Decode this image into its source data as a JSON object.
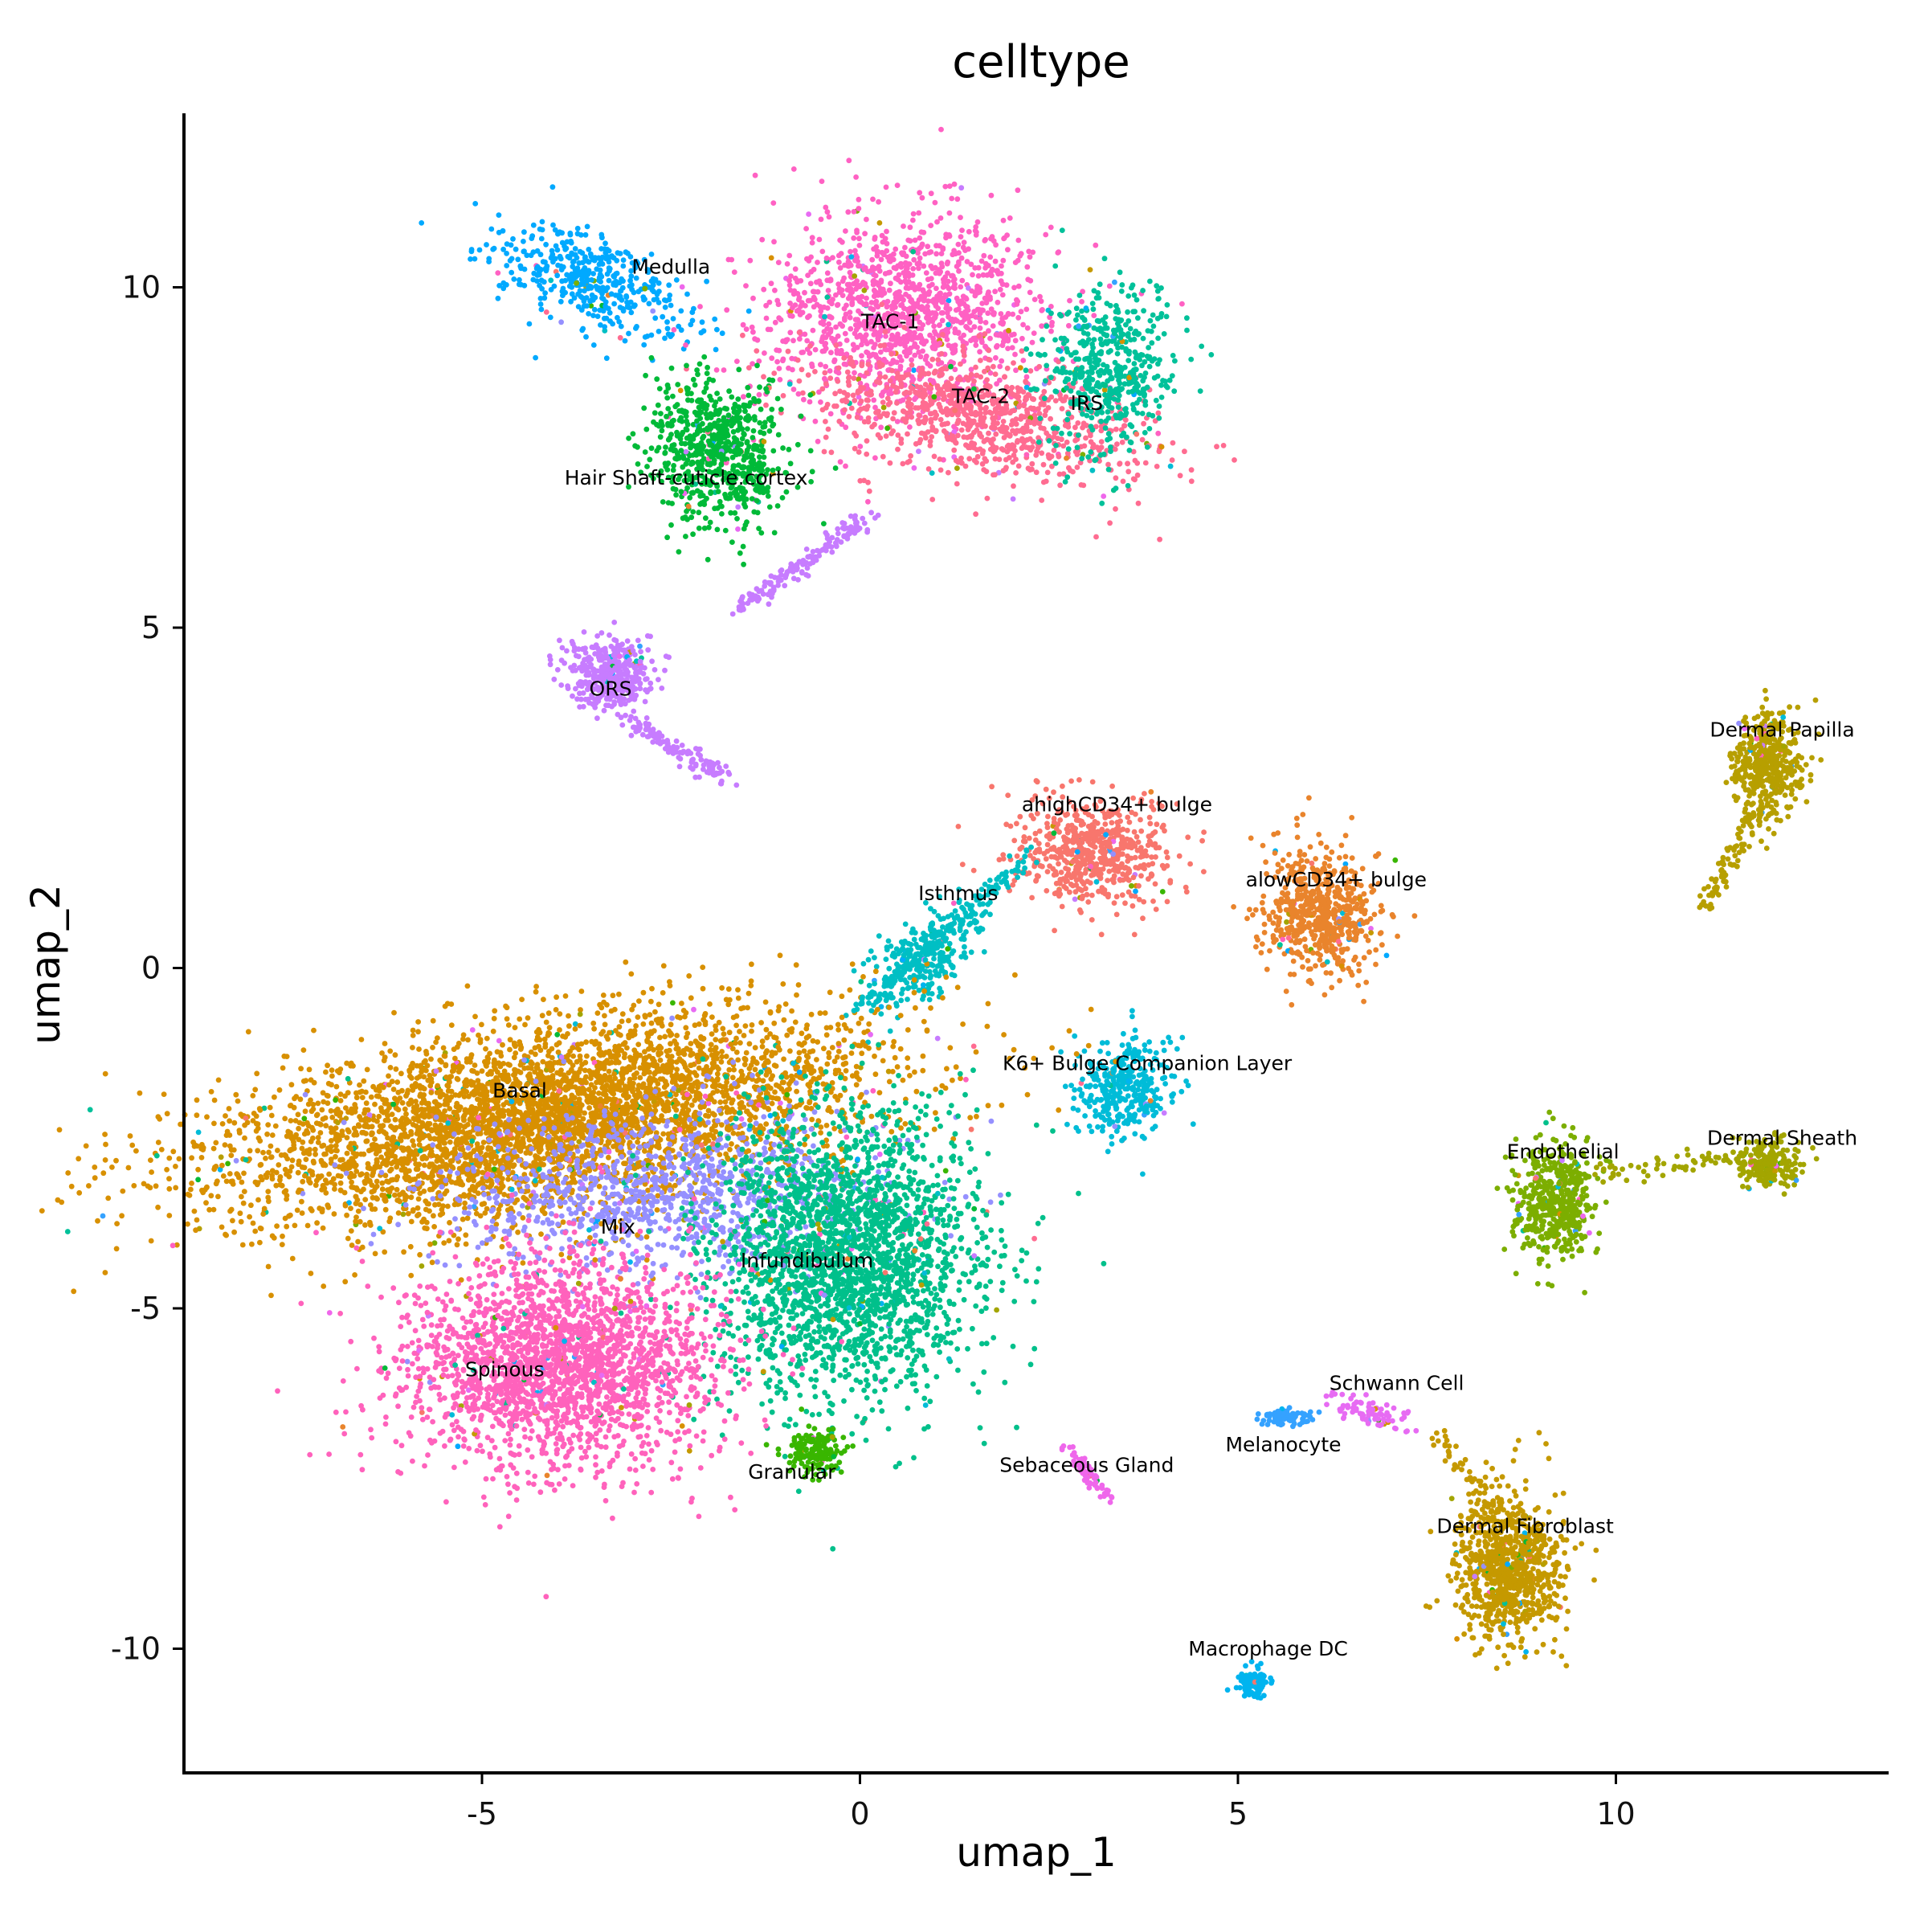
{
  "chart_data": {
    "type": "scatter",
    "title": "celltype",
    "xlabel": "umap_1",
    "ylabel": "umap_2",
    "xlim": [
      -8.9,
      13.6
    ],
    "ylim": [
      -11.9,
      12.5
    ],
    "xticks": [
      -5,
      0,
      5,
      10
    ],
    "yticks": [
      -10,
      -5,
      0,
      5,
      10
    ],
    "xtick_labels": [
      "-5",
      "0",
      "5",
      "10"
    ],
    "ytick_labels": [
      "-10",
      "-5",
      "0",
      "5",
      "10"
    ],
    "grid": false,
    "legend": "none (labels placed on clusters)",
    "clusters": [
      {
        "label": "Medulla",
        "color": "#00A9FF",
        "label_pos": [
          -2.5,
          10.2
        ],
        "centroid": [
          -3.5,
          10.1
        ],
        "spread": [
          0.9,
          0.45
        ],
        "angle": -25,
        "n": 450
      },
      {
        "label": "TAC-1",
        "color": "#FF61C3",
        "label_pos": [
          0.4,
          9.4
        ],
        "centroid": [
          0.6,
          9.6
        ],
        "spread": [
          1.3,
          0.95
        ],
        "angle": 0,
        "n": 1300
      },
      {
        "label": "TAC-2",
        "color": "#FF6C91",
        "label_pos": [
          1.6,
          8.3
        ],
        "centroid": [
          1.6,
          8.1
        ],
        "spread": [
          1.5,
          0.55
        ],
        "angle": -12,
        "n": 900
      },
      {
        "label": "IRS",
        "color": "#00C19A",
        "label_pos": [
          3.0,
          8.2
        ],
        "centroid": [
          3.3,
          8.8
        ],
        "spread": [
          0.55,
          0.8
        ],
        "angle": 0,
        "n": 500
      },
      {
        "label": "Hair Shaft-cuticle.cortex",
        "color": "#00BA38",
        "label_pos": [
          -2.3,
          7.1
        ],
        "centroid": [
          -1.9,
          7.6
        ],
        "spread": [
          0.6,
          0.7
        ],
        "angle": 30,
        "n": 700
      },
      {
        "label": "ORS",
        "color": "#C77CFF",
        "label_pos": [
          -3.3,
          4.0
        ],
        "centroid": [
          -3.3,
          4.3
        ],
        "spread": [
          0.35,
          0.35
        ],
        "angle": 0,
        "n": 400
      },
      {
        "label": "ahighCD34+ bulge",
        "color": "#F8766D",
        "label_pos": [
          3.4,
          2.3
        ],
        "centroid": [
          3.1,
          1.7
        ],
        "spread": [
          0.7,
          0.55
        ],
        "angle": 0,
        "n": 600
      },
      {
        "label": "alowCD34+ bulge",
        "color": "#E9842C",
        "label_pos": [
          6.3,
          1.2
        ],
        "centroid": [
          6.1,
          0.8
        ],
        "spread": [
          0.5,
          0.6
        ],
        "angle": 0,
        "n": 650
      },
      {
        "label": "Isthmus",
        "color": "#00BFC4",
        "label_pos": [
          1.3,
          1.0
        ],
        "centroid": [
          0.9,
          0.2
        ],
        "spread": [
          0.6,
          0.3
        ],
        "angle": 45,
        "n": 300
      },
      {
        "label": "K6+ Bulge Companion Layer",
        "color": "#00BCD8",
        "label_pos": [
          3.8,
          -1.5
        ],
        "centroid": [
          3.5,
          -1.8
        ],
        "spread": [
          0.45,
          0.5
        ],
        "angle": -30,
        "n": 350
      },
      {
        "label": "Basal",
        "color": "#D89000",
        "label_pos": [
          -4.5,
          -1.9
        ],
        "centroid": [
          -4.2,
          -2.2
        ],
        "spread": [
          2.9,
          0.9
        ],
        "angle": 10,
        "n": 4500
      },
      {
        "label": "Mix",
        "color": "#9590FF",
        "label_pos": [
          -3.2,
          -3.9
        ],
        "centroid": [
          -2.6,
          -3.3
        ],
        "spread": [
          1.9,
          0.8
        ],
        "angle": 0,
        "n": 1100
      },
      {
        "label": "Infundibulum",
        "color": "#00C08B",
        "label_pos": [
          -0.7,
          -4.4
        ],
        "centroid": [
          -0.2,
          -4.2
        ],
        "spread": [
          1.2,
          1.4
        ],
        "angle": 0,
        "n": 2400
      },
      {
        "label": "Spinous",
        "color": "#FF62BC",
        "label_pos": [
          -4.7,
          -6.0
        ],
        "centroid": [
          -4.0,
          -5.8
        ],
        "spread": [
          1.4,
          1.0
        ],
        "angle": 0,
        "n": 2300
      },
      {
        "label": "Granular",
        "color": "#39B600",
        "label_pos": [
          -0.9,
          -7.5
        ],
        "centroid": [
          -0.6,
          -7.1
        ],
        "spread": [
          0.25,
          0.25
        ],
        "angle": 0,
        "n": 150
      },
      {
        "label": "Dermal Papilla",
        "color": "#B79F00",
        "label_pos": [
          12.2,
          3.4
        ],
        "centroid": [
          12.0,
          3.0
        ],
        "spread": [
          0.3,
          0.5
        ],
        "angle": 0,
        "n": 450
      },
      {
        "label": "Endothelial",
        "color": "#7CAE00",
        "label_pos": [
          9.3,
          -2.8
        ],
        "centroid": [
          9.2,
          -3.4
        ],
        "spread": [
          0.35,
          0.55
        ],
        "angle": 0,
        "n": 500
      },
      {
        "label": "Dermal Sheath",
        "color": "#A3A500",
        "label_pos": [
          12.2,
          -2.6
        ],
        "centroid": [
          12.0,
          -2.9
        ],
        "spread": [
          0.3,
          0.25
        ],
        "angle": 0,
        "n": 200
      },
      {
        "label": "Schwann Cell",
        "color": "#E76BF3",
        "label_pos": [
          7.1,
          -6.2
        ],
        "centroid": [
          6.7,
          -6.5
        ],
        "spread": [
          0.4,
          0.12
        ],
        "angle": -20,
        "n": 80
      },
      {
        "label": "Melanocyte",
        "color": "#35A2FF",
        "label_pos": [
          5.6,
          -7.1
        ],
        "centroid": [
          5.6,
          -6.6
        ],
        "spread": [
          0.25,
          0.1
        ],
        "angle": 0,
        "n": 90
      },
      {
        "label": "Sebaceous Gland",
        "color": "#EF67EB",
        "label_pos": [
          3.0,
          -7.4
        ],
        "centroid": [
          3.0,
          -7.4
        ],
        "spread": [
          0.35,
          0.07
        ],
        "angle": -55,
        "n": 70
      },
      {
        "label": "Dermal Fibroblast",
        "color": "#C59900",
        "label_pos": [
          8.8,
          -8.3
        ],
        "centroid": [
          8.6,
          -8.8
        ],
        "spread": [
          0.45,
          0.75
        ],
        "angle": 0,
        "n": 900
      },
      {
        "label": "Macrophage DC",
        "color": "#00B4EF",
        "label_pos": [
          5.4,
          -10.1
        ],
        "centroid": [
          5.2,
          -10.5
        ],
        "spread": [
          0.12,
          0.15
        ],
        "angle": 0,
        "n": 100
      }
    ],
    "bridges": [
      {
        "color": "#C77CFF",
        "from": [
          -1.6,
          5.3
        ],
        "to": [
          0.1,
          6.6
        ],
        "n": 160
      },
      {
        "color": "#C77CFF",
        "from": [
          -3.0,
          3.6
        ],
        "to": [
          -1.8,
          2.8
        ],
        "n": 120
      },
      {
        "color": "#00BFC4",
        "from": [
          0.0,
          -0.6
        ],
        "to": [
          2.3,
          1.7
        ],
        "n": 160
      },
      {
        "color": "#A3A500",
        "from": [
          9.7,
          -3.0
        ],
        "to": [
          11.8,
          -2.8
        ],
        "n": 60
      },
      {
        "color": "#B79F00",
        "from": [
          11.2,
          0.9
        ],
        "to": [
          11.9,
          2.5
        ],
        "n": 90
      },
      {
        "color": "#C59900",
        "from": [
          7.6,
          -6.8
        ],
        "to": [
          8.3,
          -7.9
        ],
        "n": 40
      }
    ]
  }
}
